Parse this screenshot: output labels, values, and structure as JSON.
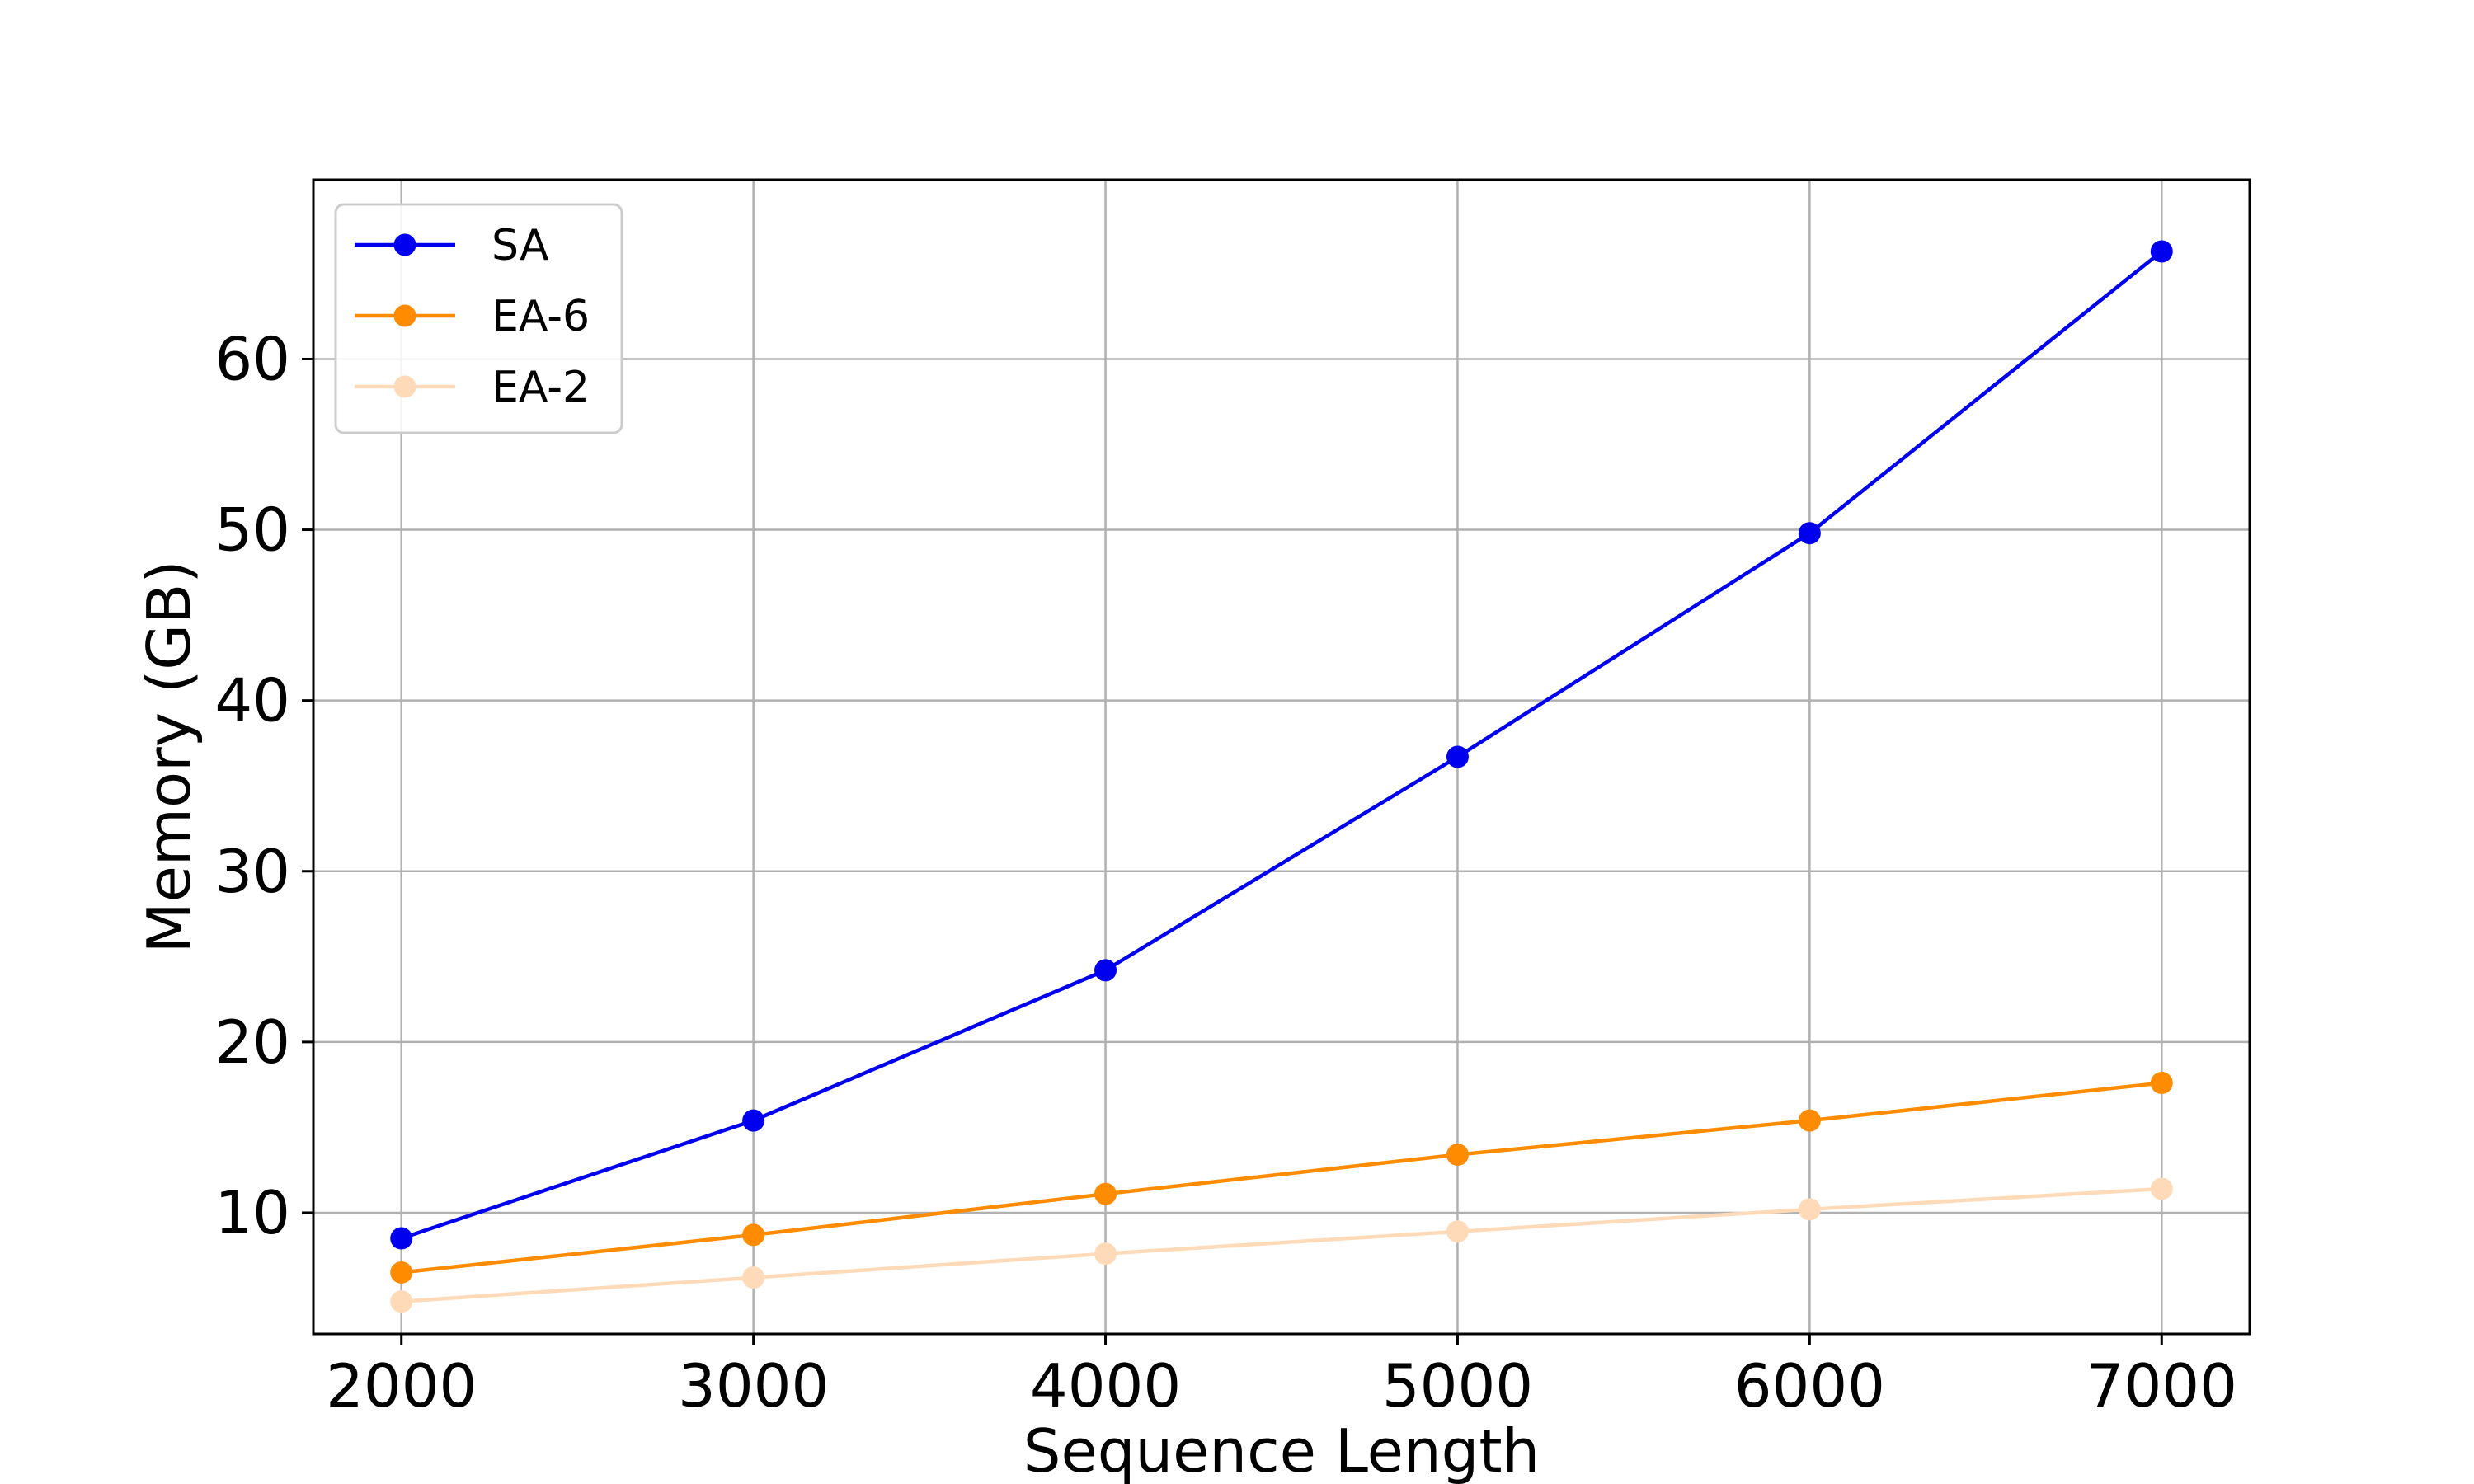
{
  "chart_data": {
    "type": "line",
    "x": [
      2000,
      3000,
      4000,
      5000,
      6000,
      7000
    ],
    "xlabel": "Sequence Length",
    "ylabel": "Memory (GB)",
    "xlim": [
      1750,
      7250
    ],
    "ylim": [
      2.9,
      70.5
    ],
    "xticks": [
      2000,
      3000,
      4000,
      5000,
      6000,
      7000
    ],
    "yticks": [
      10,
      20,
      30,
      40,
      50,
      60
    ],
    "grid": true,
    "legend_position": "top-left",
    "series": [
      {
        "name": "SA",
        "color": "#0000ee",
        "values": [
          8.5,
          15.4,
          24.2,
          36.7,
          49.8,
          66.3
        ]
      },
      {
        "name": "EA-6",
        "color": "#ff8c00",
        "values": [
          6.5,
          8.7,
          11.1,
          13.4,
          15.4,
          17.6
        ]
      },
      {
        "name": "EA-2",
        "color": "#ffdab9",
        "values": [
          4.8,
          6.2,
          7.6,
          8.9,
          10.2,
          11.4
        ]
      }
    ]
  }
}
